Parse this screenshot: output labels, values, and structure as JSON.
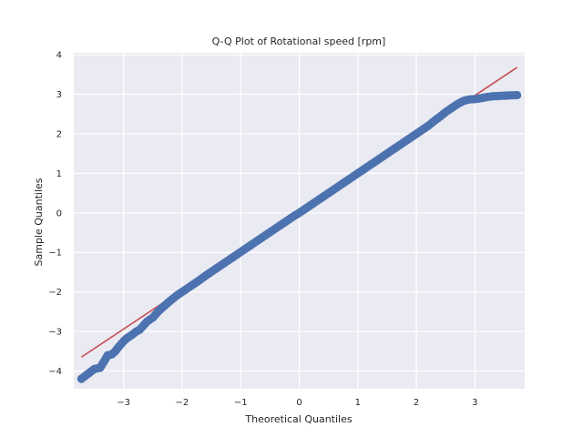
{
  "chart_data": {
    "type": "scatter",
    "title": "Q-Q Plot of Rotational speed [rpm]",
    "xlabel": "Theoretical Quantiles",
    "ylabel": "Sample Quantiles",
    "xlim": [
      -3.85,
      3.85
    ],
    "ylim": [
      -4.45,
      4.05
    ],
    "xticks": [
      -3,
      -2,
      -1,
      0,
      1,
      2,
      3
    ],
    "yticks": [
      -4,
      -3,
      -2,
      -1,
      0,
      1,
      2,
      3,
      4
    ],
    "grid": true,
    "background": "#eaeaf2",
    "marker_color": "#4c72b0",
    "line_color": "#c44e52",
    "reference_line": {
      "x": [
        -3.72,
        3.72
      ],
      "y": [
        -3.65,
        3.68
      ]
    },
    "series": [
      {
        "points": [
          [
            -3.72,
            -4.2
          ],
          [
            -3.5,
            -3.95
          ],
          [
            -3.4,
            -3.92
          ],
          [
            -3.33,
            -3.75
          ],
          [
            -3.27,
            -3.6
          ],
          [
            -3.2,
            -3.58
          ],
          [
            -3.14,
            -3.5
          ],
          [
            -3.1,
            -3.42
          ],
          [
            -3.06,
            -3.35
          ],
          [
            -3.0,
            -3.25
          ],
          [
            -2.95,
            -3.18
          ],
          [
            -2.9,
            -3.13
          ],
          [
            -2.85,
            -3.08
          ],
          [
            -2.78,
            -3.0
          ],
          [
            -2.72,
            -2.95
          ],
          [
            -2.66,
            -2.85
          ],
          [
            -2.6,
            -2.75
          ],
          [
            -2.5,
            -2.65
          ],
          [
            -2.4,
            -2.48
          ],
          [
            -2.3,
            -2.35
          ],
          [
            -2.2,
            -2.22
          ],
          [
            -2.1,
            -2.1
          ],
          [
            -2.0,
            -2.0
          ],
          [
            -1.9,
            -1.9
          ],
          [
            -1.8,
            -1.8
          ],
          [
            -1.7,
            -1.7
          ],
          [
            -1.6,
            -1.59
          ],
          [
            -1.5,
            -1.49
          ],
          [
            -1.4,
            -1.39
          ],
          [
            -1.3,
            -1.29
          ],
          [
            -1.2,
            -1.19
          ],
          [
            -1.1,
            -1.09
          ],
          [
            -1.0,
            -0.99
          ],
          [
            -0.9,
            -0.89
          ],
          [
            -0.8,
            -0.79
          ],
          [
            -0.7,
            -0.69
          ],
          [
            -0.6,
            -0.59
          ],
          [
            -0.5,
            -0.49
          ],
          [
            -0.4,
            -0.39
          ],
          [
            -0.3,
            -0.29
          ],
          [
            -0.2,
            -0.19
          ],
          [
            -0.1,
            -0.09
          ],
          [
            0.0,
            0.0
          ],
          [
            0.1,
            0.1
          ],
          [
            0.2,
            0.2
          ],
          [
            0.3,
            0.3
          ],
          [
            0.4,
            0.4
          ],
          [
            0.5,
            0.5
          ],
          [
            0.6,
            0.6
          ],
          [
            0.7,
            0.7
          ],
          [
            0.8,
            0.8
          ],
          [
            0.9,
            0.9
          ],
          [
            1.0,
            1.0
          ],
          [
            1.1,
            1.1
          ],
          [
            1.2,
            1.2
          ],
          [
            1.3,
            1.3
          ],
          [
            1.4,
            1.4
          ],
          [
            1.5,
            1.5
          ],
          [
            1.6,
            1.6
          ],
          [
            1.7,
            1.7
          ],
          [
            1.8,
            1.8
          ],
          [
            1.9,
            1.9
          ],
          [
            2.0,
            2.0
          ],
          [
            2.1,
            2.1
          ],
          [
            2.2,
            2.2
          ],
          [
            2.3,
            2.32
          ],
          [
            2.4,
            2.43
          ],
          [
            2.5,
            2.55
          ],
          [
            2.6,
            2.65
          ],
          [
            2.7,
            2.75
          ],
          [
            2.8,
            2.83
          ],
          [
            2.9,
            2.87
          ],
          [
            3.0,
            2.88
          ],
          [
            3.1,
            2.9
          ],
          [
            3.2,
            2.93
          ],
          [
            3.3,
            2.95
          ],
          [
            3.42,
            2.96
          ],
          [
            3.72,
            2.98
          ]
        ]
      }
    ]
  }
}
